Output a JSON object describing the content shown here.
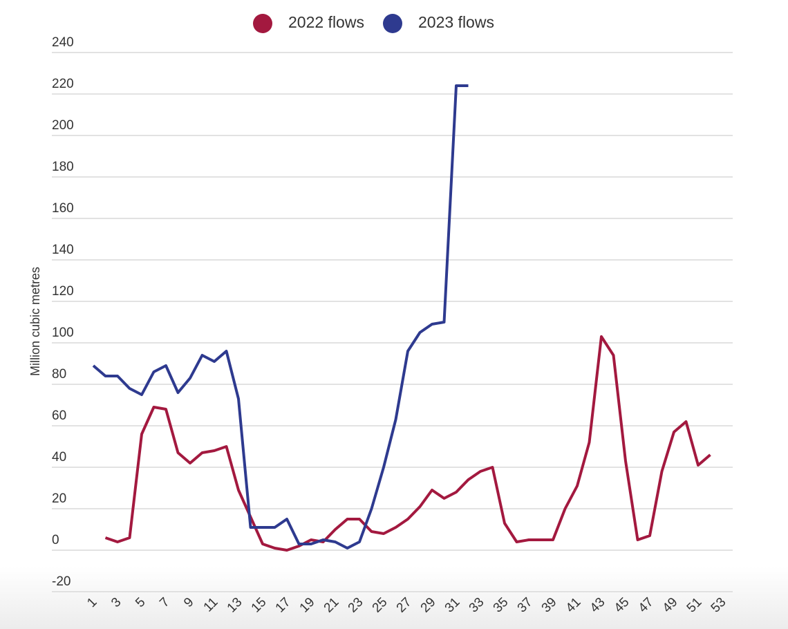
{
  "chart_data": {
    "type": "line",
    "y_label": "Million cubic metres",
    "x": [
      1,
      2,
      3,
      4,
      5,
      6,
      7,
      8,
      9,
      10,
      11,
      12,
      13,
      14,
      15,
      16,
      17,
      18,
      19,
      20,
      21,
      22,
      23,
      24,
      25,
      26,
      27,
      28,
      29,
      30,
      31,
      32,
      33,
      34,
      35,
      36,
      37,
      38,
      39,
      40,
      41,
      42,
      43,
      44,
      45,
      46,
      47,
      48,
      49,
      50,
      51,
      52,
      53
    ],
    "series": [
      {
        "name": "2022 flows",
        "color": "#a3193f",
        "values": [
          null,
          6,
          4,
          6,
          56,
          69,
          68,
          47,
          42,
          47,
          48,
          50,
          29,
          16,
          3,
          1,
          0,
          2,
          5,
          4,
          10,
          15,
          15,
          9,
          8,
          11,
          15,
          21,
          29,
          25,
          28,
          34,
          38,
          40,
          13,
          4,
          5,
          5,
          5,
          20,
          31,
          52,
          103,
          94,
          43,
          5,
          7,
          38,
          57,
          62,
          41,
          46,
          null
        ]
      },
      {
        "name": "2023 flows",
        "color": "#2e3a8f",
        "values": [
          89,
          84,
          84,
          78,
          75,
          86,
          89,
          76,
          83,
          94,
          91,
          96,
          73,
          11,
          11,
          11,
          15,
          3,
          3,
          5,
          4,
          1,
          4,
          20,
          40,
          63,
          96,
          105,
          109,
          110,
          224,
          224,
          null,
          null,
          null,
          null,
          null,
          null,
          null,
          null,
          null,
          null,
          null,
          null,
          null,
          null,
          null,
          null,
          null,
          null,
          null,
          null,
          null
        ]
      }
    ],
    "xlim": [
      1,
      53
    ],
    "xticks": [
      1,
      3,
      5,
      7,
      9,
      11,
      13,
      15,
      17,
      19,
      21,
      23,
      25,
      27,
      29,
      31,
      33,
      35,
      37,
      39,
      41,
      43,
      45,
      47,
      49,
      51,
      53
    ],
    "ylim": [
      -20,
      240
    ],
    "yticks": [
      -20,
      0,
      20,
      40,
      60,
      80,
      100,
      120,
      140,
      160,
      180,
      200,
      220,
      240
    ],
    "grid": true
  }
}
